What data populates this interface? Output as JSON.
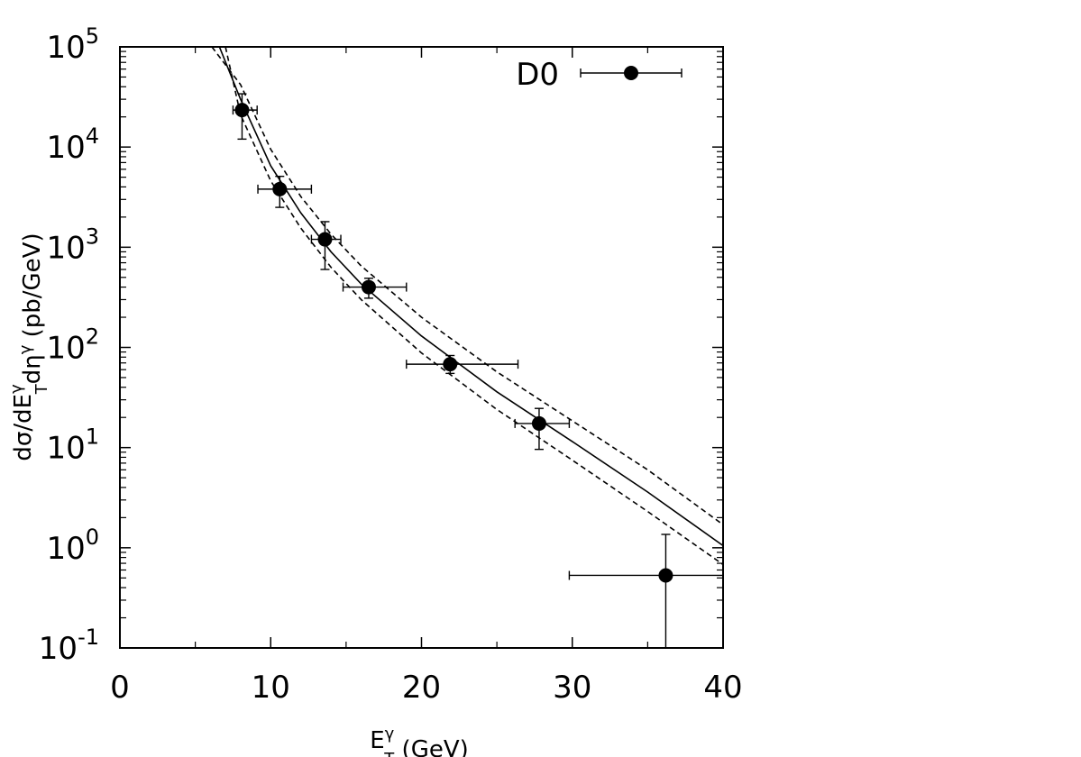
{
  "chart_data": {
    "type": "scatter",
    "xlabel": [
      [
        "E",
        "base"
      ],
      [
        "γ",
        "sup"
      ],
      [
        "T",
        "sub"
      ],
      [
        " (GeV)",
        "base"
      ]
    ],
    "ylabel": [
      [
        "dσ/dE",
        "base"
      ],
      [
        "γ",
        "sup"
      ],
      [
        "T",
        "sub"
      ],
      [
        "dη",
        "base"
      ],
      [
        "γ",
        "sup"
      ],
      [
        " (pb/GeV)",
        "base"
      ]
    ],
    "xlim": [
      0,
      40
    ],
    "xticks": [
      0,
      10,
      20,
      30,
      40
    ],
    "ylim": [
      0.1,
      100000
    ],
    "log_y": true,
    "yticks": [
      {
        "value": 0.1,
        "label": "10",
        "exponent": "-1"
      },
      {
        "value": 1,
        "label": "10",
        "exponent": "0"
      },
      {
        "value": 10,
        "label": "10",
        "exponent": "1"
      },
      {
        "value": 100,
        "label": "10",
        "exponent": "2"
      },
      {
        "value": 1000,
        "label": "10",
        "exponent": "3"
      },
      {
        "value": 10000,
        "label": "10",
        "exponent": "4"
      },
      {
        "value": 100000,
        "label": "10",
        "exponent": "5"
      }
    ],
    "legend": "top-right",
    "series": [
      {
        "name": "D0",
        "color": "#000000",
        "x": [
          8.1,
          10.6,
          13.6,
          16.5,
          21.9,
          27.8,
          36.2
        ],
        "values": [
          23400,
          3800,
          1200,
          400,
          68,
          17.4,
          0.53
        ],
        "y_low": [
          12000,
          2500,
          600,
          310,
          55,
          9.6,
          0.1
        ],
        "y_high": [
          34000,
          5100,
          1800,
          490,
          83,
          24.6,
          1.36
        ],
        "x_low": [
          7.5,
          9.15,
          12.7,
          14.8,
          19.0,
          26.2,
          29.8
        ],
        "x_high": [
          9.1,
          12.7,
          14.65,
          19.0,
          26.4,
          29.8,
          40
        ]
      }
    ],
    "curves": [
      {
        "style": "solid",
        "color": "#000000",
        "x": [
          6.6,
          8,
          10,
          12,
          14,
          16,
          20,
          25,
          30,
          35,
          40
        ],
        "values": [
          100000,
          30000,
          6500,
          2200,
          900,
          430,
          130,
          36,
          11.5,
          3.6,
          1.05
        ]
      },
      {
        "style": "dashed",
        "color": "#000000",
        "x": [
          6.1,
          8,
          10,
          12,
          14,
          16,
          20,
          25,
          30,
          35,
          40
        ],
        "values": [
          100000,
          42000,
          9500,
          3200,
          1350,
          650,
          200,
          57,
          18.5,
          6,
          1.7
        ]
      },
      {
        "style": "dashed",
        "color": "#000000",
        "x": [
          7.0,
          8,
          10,
          12,
          14,
          16,
          20,
          25,
          30,
          35,
          40
        ],
        "values": [
          100000,
          21000,
          4600,
          1550,
          630,
          300,
          88,
          24,
          7.5,
          2.3,
          0.68
        ]
      }
    ]
  }
}
